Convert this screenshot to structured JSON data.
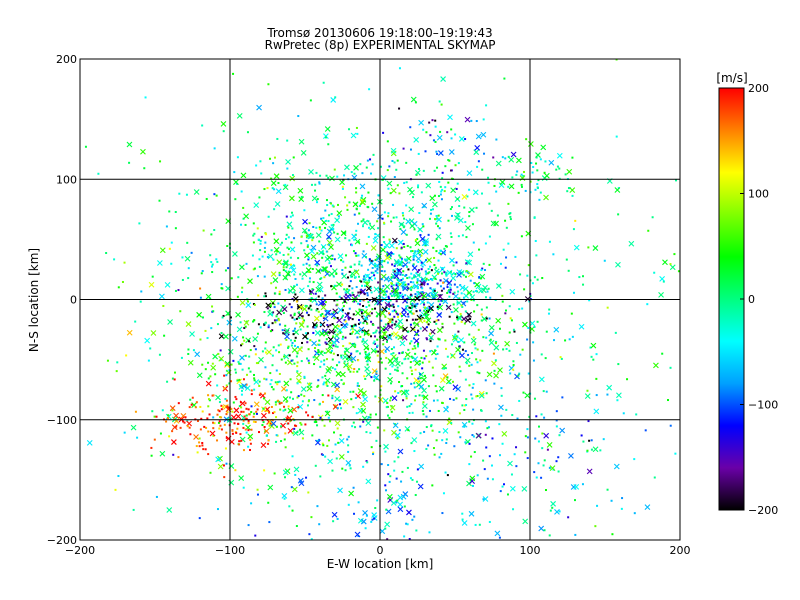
{
  "title_line1": "Tromsø 20130606 19:18:00–19:19:43",
  "title_line2": "RwPretec (8p) EXPERIMENTAL SKYMAP",
  "chart_data": {
    "type": "scatter",
    "xlabel": "E-W location [km]",
    "ylabel": "N-S location [km]",
    "xlim": [
      -200,
      200
    ],
    "ylim": [
      -200,
      200
    ],
    "x_ticks": [
      -200,
      -100,
      0,
      100,
      200
    ],
    "y_ticks": [
      -200,
      -100,
      0,
      100,
      200
    ],
    "grid": true,
    "grid_lines_x": [
      -100,
      0,
      100
    ],
    "grid_lines_y": [
      -100,
      0,
      100
    ],
    "marker_types": [
      "x",
      "dot"
    ],
    "colorbar": {
      "label": "[m/s]",
      "range": [
        -200,
        200
      ],
      "ticks": [
        200,
        100,
        0,
        -100,
        -200
      ],
      "colors": [
        "#000000",
        "#6a00a8",
        "#0000ff",
        "#00a0ff",
        "#00ffff",
        "#00ff80",
        "#00ff00",
        "#80ff00",
        "#ffff00",
        "#ff8000",
        "#ff0000"
      ],
      "placement": "right"
    },
    "clusters": [
      {
        "cx": 0,
        "cy": 35,
        "sx": 55,
        "sy": 45,
        "v": -10,
        "n": 900
      },
      {
        "cx": 20,
        "cy": 15,
        "sx": 20,
        "sy": 15,
        "v": -70,
        "n": 250
      },
      {
        "cx": -10,
        "cy": -15,
        "sx": 40,
        "sy": 15,
        "v": -185,
        "n": 260
      },
      {
        "cx": -25,
        "cy": -55,
        "sx": 60,
        "sy": 40,
        "v": 40,
        "n": 700
      },
      {
        "cx": -95,
        "cy": -100,
        "sx": 25,
        "sy": 15,
        "v": 185,
        "n": 200
      },
      {
        "cx": 40,
        "cy": 130,
        "sx": 25,
        "sy": 15,
        "v": -100,
        "n": 40
      },
      {
        "cx": 105,
        "cy": 105,
        "sx": 15,
        "sy": 10,
        "v": -10,
        "n": 50
      },
      {
        "cx": 30,
        "cy": -120,
        "sx": 70,
        "sy": 60,
        "v": -60,
        "n": 450
      },
      {
        "cx": 0,
        "cy": 0,
        "sx": 130,
        "sy": 110,
        "v": 10,
        "n": 420
      }
    ]
  }
}
